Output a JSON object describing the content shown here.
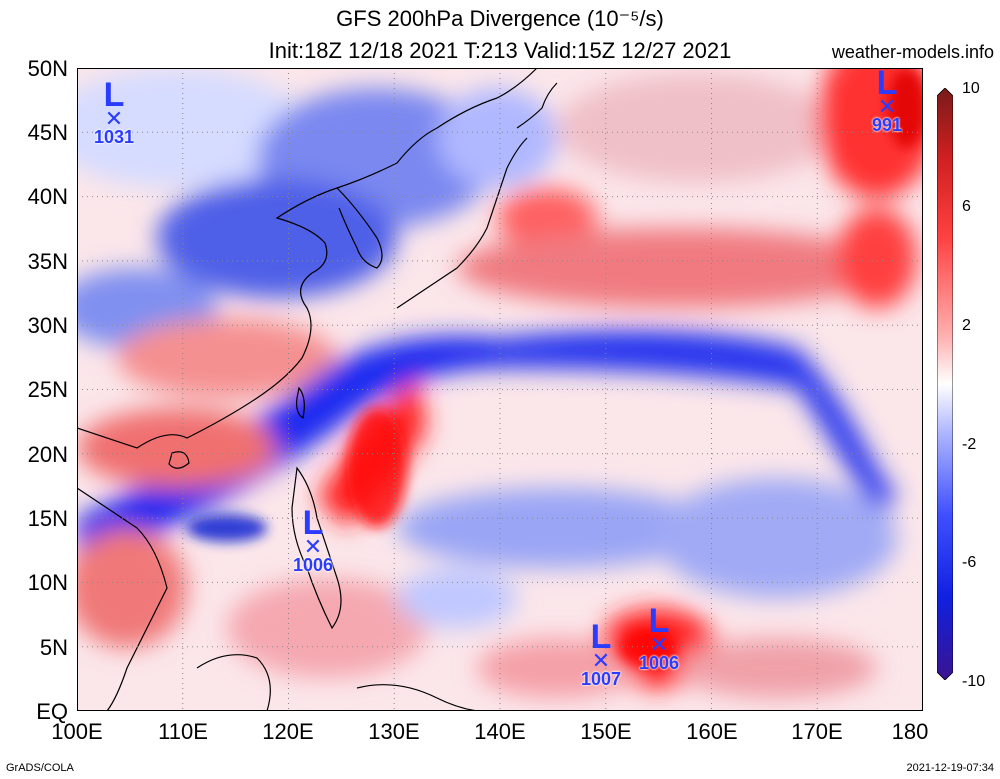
{
  "title_line1": "GFS 200hPa Divergence (10⁻⁵/s)",
  "title_line2": "Init:18Z 12/18 2021 T:213 Valid:15Z 12/27 2021",
  "site_label": "weather-models.info",
  "footer_left": "GrADS/COLA",
  "footer_right": "2021-12-19-07:34",
  "lat_labels": [
    "50N",
    "45N",
    "40N",
    "35N",
    "30N",
    "25N",
    "20N",
    "15N",
    "10N",
    "5N",
    "EQ"
  ],
  "lon_labels": [
    "100E",
    "110E",
    "120E",
    "130E",
    "140E",
    "150E",
    "160E",
    "170E",
    "180"
  ],
  "colorbar_labels": [
    "10",
    "6",
    "2",
    "-2",
    "-6",
    "-10"
  ],
  "colorbar_colors": [
    "#7a1a1a",
    "#d02020",
    "#ff4040",
    "#ffb0b0",
    "#ffffff",
    "#b0b8ff",
    "#4050ff",
    "#1020e0",
    "#3a1490"
  ],
  "pressure_lows": [
    {
      "symbol": "L",
      "marker": "✕",
      "pressure": "1031",
      "lon": 103.5,
      "lat": 46
    },
    {
      "symbol": "L",
      "marker": "✕",
      "pressure": "991",
      "lon": 176.5,
      "lat": 47
    },
    {
      "symbol": "L",
      "marker": "✕",
      "pressure": "1006",
      "lon": 122.5,
      "lat": 12
    },
    {
      "symbol": "L",
      "marker": "✕",
      "pressure": "1007",
      "lon": 149.5,
      "lat": 3.5
    },
    {
      "symbol": "L",
      "marker": "✕",
      "pressure": "1006",
      "lon": 155,
      "lat": 4.5
    }
  ],
  "accent_colors": {
    "low_marker": "#2a3cff",
    "grid": "#888888"
  }
}
